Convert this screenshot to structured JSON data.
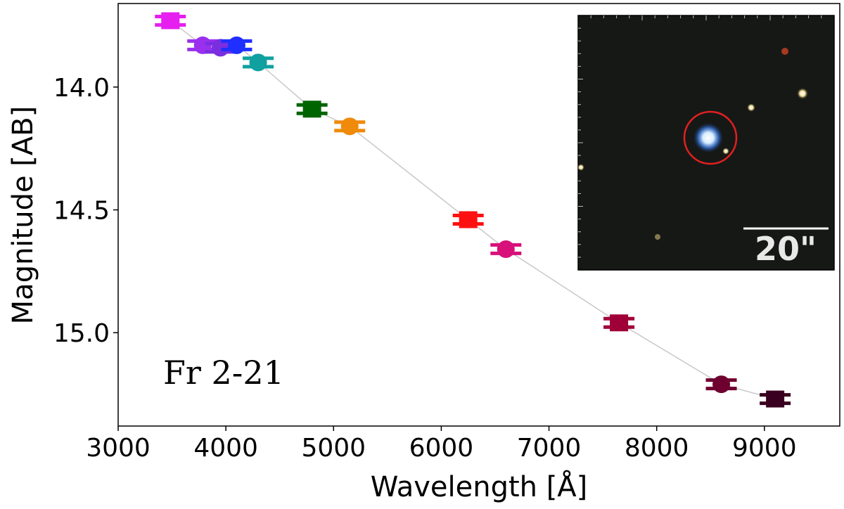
{
  "chart_data": {
    "type": "scatter",
    "xlabel": "Wavelength [Å]",
    "ylabel": "Magnitude [AB]",
    "annotation": "Fr 2-21",
    "xlim": [
      3000,
      9700
    ],
    "ylim": [
      15.38,
      13.66
    ],
    "y_inverted": true,
    "grid": false,
    "x_ticks": [
      3000,
      4000,
      5000,
      6000,
      7000,
      8000,
      9000
    ],
    "y_ticks": [
      14.0,
      14.5,
      15.0
    ],
    "x_tick_labels": [
      "3000",
      "4000",
      "5000",
      "6000",
      "7000",
      "8000",
      "9000"
    ],
    "y_tick_labels": [
      "14.0",
      "14.5",
      "15.0"
    ],
    "line_color": "#c8c8c8",
    "points": [
      {
        "x": 3485,
        "y": 13.73,
        "marker": "square",
        "color": "#e61ef0"
      },
      {
        "x": 3785,
        "y": 13.83,
        "marker": "circle",
        "color": "#9a30ee"
      },
      {
        "x": 3950,
        "y": 13.84,
        "marker": "circle",
        "color": "#7a2ee0"
      },
      {
        "x": 4100,
        "y": 13.83,
        "marker": "circle",
        "color": "#1f2fff"
      },
      {
        "x": 4300,
        "y": 13.9,
        "marker": "circle",
        "color": "#10a0a0"
      },
      {
        "x": 4800,
        "y": 14.09,
        "marker": "square",
        "color": "#006400"
      },
      {
        "x": 5150,
        "y": 14.16,
        "marker": "circle",
        "color": "#ef8a0a"
      },
      {
        "x": 6250,
        "y": 14.54,
        "marker": "square",
        "color": "#ff1010"
      },
      {
        "x": 6600,
        "y": 14.66,
        "marker": "circle",
        "color": "#d8107a"
      },
      {
        "x": 7650,
        "y": 14.96,
        "marker": "square",
        "color": "#a00038"
      },
      {
        "x": 8600,
        "y": 15.21,
        "marker": "circle",
        "color": "#6e0030"
      },
      {
        "x": 9100,
        "y": 15.27,
        "marker": "square",
        "color": "#3a0020"
      }
    ],
    "inset": {
      "type": "image",
      "background": "#161816",
      "circle_color": "#e02020",
      "scale_bar_label": "20\""
    }
  }
}
